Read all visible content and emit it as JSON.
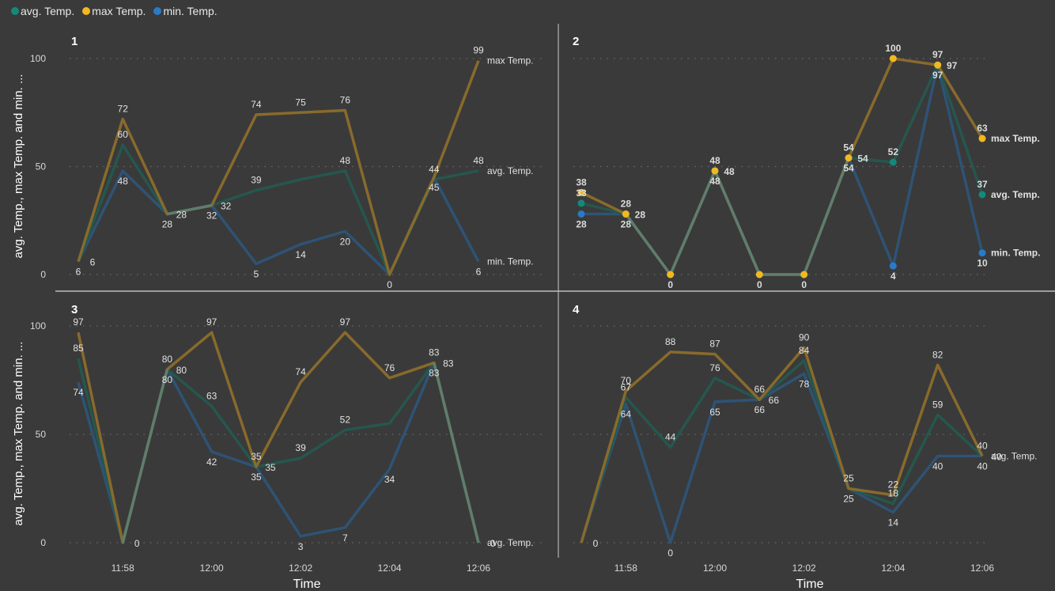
{
  "legend": [
    {
      "name": "avg. Temp.",
      "color": "#13897a"
    },
    {
      "name": "max Temp.",
      "color": "#f2b820"
    },
    {
      "name": "min. Temp.",
      "color": "#2a7ac8"
    }
  ],
  "chart_data": [
    {
      "type": "line",
      "title": "1",
      "xlabel": "",
      "ylabel": "avg. Temp., max Temp. and min. ...",
      "ylim": [
        0,
        100
      ],
      "yticks": [
        "0",
        "50",
        "100"
      ],
      "grid": true,
      "x": [
        "11:57",
        "11:58",
        "11:59",
        "12:00",
        "12:01",
        "12:02",
        "12:03",
        "12:04",
        "12:05",
        "12:06"
      ],
      "xticks": [],
      "series": [
        {
          "name": "max Temp.",
          "values": [
            6,
            72,
            28,
            32,
            74,
            75,
            76,
            0,
            45,
            99
          ],
          "hidden_labels": [
            0,
            2,
            3,
            7,
            8
          ],
          "end_label": "max Temp."
        },
        {
          "name": "avg. Temp.",
          "values": [
            6,
            60,
            28,
            32,
            39,
            44,
            48,
            0,
            44,
            48
          ],
          "hidden_labels": [
            5,
            7
          ],
          "end_label": "avg. Temp."
        },
        {
          "name": "min. Temp.",
          "values": [
            6,
            48,
            28,
            32,
            5,
            14,
            20,
            0,
            45,
            6
          ],
          "hidden_labels": [],
          "end_label": "min. Temp."
        }
      ],
      "markers": false
    },
    {
      "type": "line",
      "title": "2",
      "xlabel": "",
      "ylabel": "",
      "ylim": [
        0,
        100
      ],
      "yticks": [],
      "grid": true,
      "x": [
        "11:57",
        "11:58",
        "11:59",
        "12:00",
        "12:01",
        "12:02",
        "12:03",
        "12:04",
        "12:05",
        "12:06"
      ],
      "xticks": [],
      "series": [
        {
          "name": "max Temp.",
          "values": [
            38,
            28,
            0,
            48,
            0,
            0,
            54,
            100,
            97,
            63
          ],
          "hidden_labels": [
            2,
            4,
            5
          ],
          "end_label": "max Temp."
        },
        {
          "name": "avg. Temp.",
          "values": [
            33,
            28,
            0,
            48,
            0,
            0,
            54,
            52,
            97,
            37
          ],
          "hidden_labels": [
            2,
            4,
            5
          ],
          "end_label": "avg. Temp."
        },
        {
          "name": "min. Temp.",
          "values": [
            28,
            28,
            0,
            48,
            0,
            0,
            54,
            4,
            97,
            10
          ],
          "hidden_labels": [],
          "end_label": "min. Temp."
        }
      ],
      "markers": true
    },
    {
      "type": "line",
      "title": "3",
      "xlabel": "Time",
      "ylabel": "avg. Temp., max Temp. and min. ...",
      "ylim": [
        0,
        100
      ],
      "yticks": [
        "0",
        "50",
        "100"
      ],
      "grid": true,
      "x": [
        "11:57",
        "11:58",
        "11:59",
        "12:00",
        "12:01",
        "12:02",
        "12:03",
        "12:04",
        "12:05",
        "12:06"
      ],
      "xticks": [
        "11:58",
        "12:00",
        "12:02",
        "12:04",
        "12:06"
      ],
      "series": [
        {
          "name": "max Temp.",
          "values": [
            97,
            0,
            80,
            97,
            35,
            74,
            97,
            76,
            83,
            0
          ],
          "hidden_labels": [
            1,
            9
          ],
          "end_label": ""
        },
        {
          "name": "avg. Temp.",
          "values": [
            85,
            0,
            80,
            63,
            35,
            39,
            52,
            55,
            83,
            0
          ],
          "hidden_labels": [
            7
          ],
          "end_label": "avg. Temp."
        },
        {
          "name": "min. Temp.",
          "values": [
            74,
            0,
            80,
            42,
            35,
            3,
            7,
            34,
            83,
            0
          ],
          "hidden_labels": [
            1,
            9
          ],
          "end_label": ""
        }
      ],
      "markers": false
    },
    {
      "type": "line",
      "title": "4",
      "xlabel": "Time",
      "ylabel": "",
      "ylim": [
        0,
        100
      ],
      "yticks": [],
      "grid": true,
      "x": [
        "11:57",
        "11:58",
        "11:59",
        "12:00",
        "12:01",
        "12:02",
        "12:03",
        "12:04",
        "12:05",
        "12:06"
      ],
      "xticks": [
        "11:58",
        "12:00",
        "12:02",
        "12:04",
        "12:06"
      ],
      "series": [
        {
          "name": "max Temp.",
          "values": [
            0,
            70,
            88,
            87,
            66,
            90,
            25,
            22,
            82,
            40
          ],
          "hidden_labels": [
            0
          ],
          "end_label": ""
        },
        {
          "name": "avg. Temp.",
          "values": [
            0,
            67,
            44,
            76,
            66,
            84,
            25,
            18,
            59,
            40
          ],
          "hidden_labels": [
            6
          ],
          "end_label": "avg. Temp."
        },
        {
          "name": "min. Temp.",
          "values": [
            0,
            64,
            0,
            65,
            66,
            78,
            25,
            14,
            40,
            40
          ],
          "hidden_labels": [
            0
          ],
          "end_label": ""
        }
      ],
      "markers": false
    }
  ]
}
